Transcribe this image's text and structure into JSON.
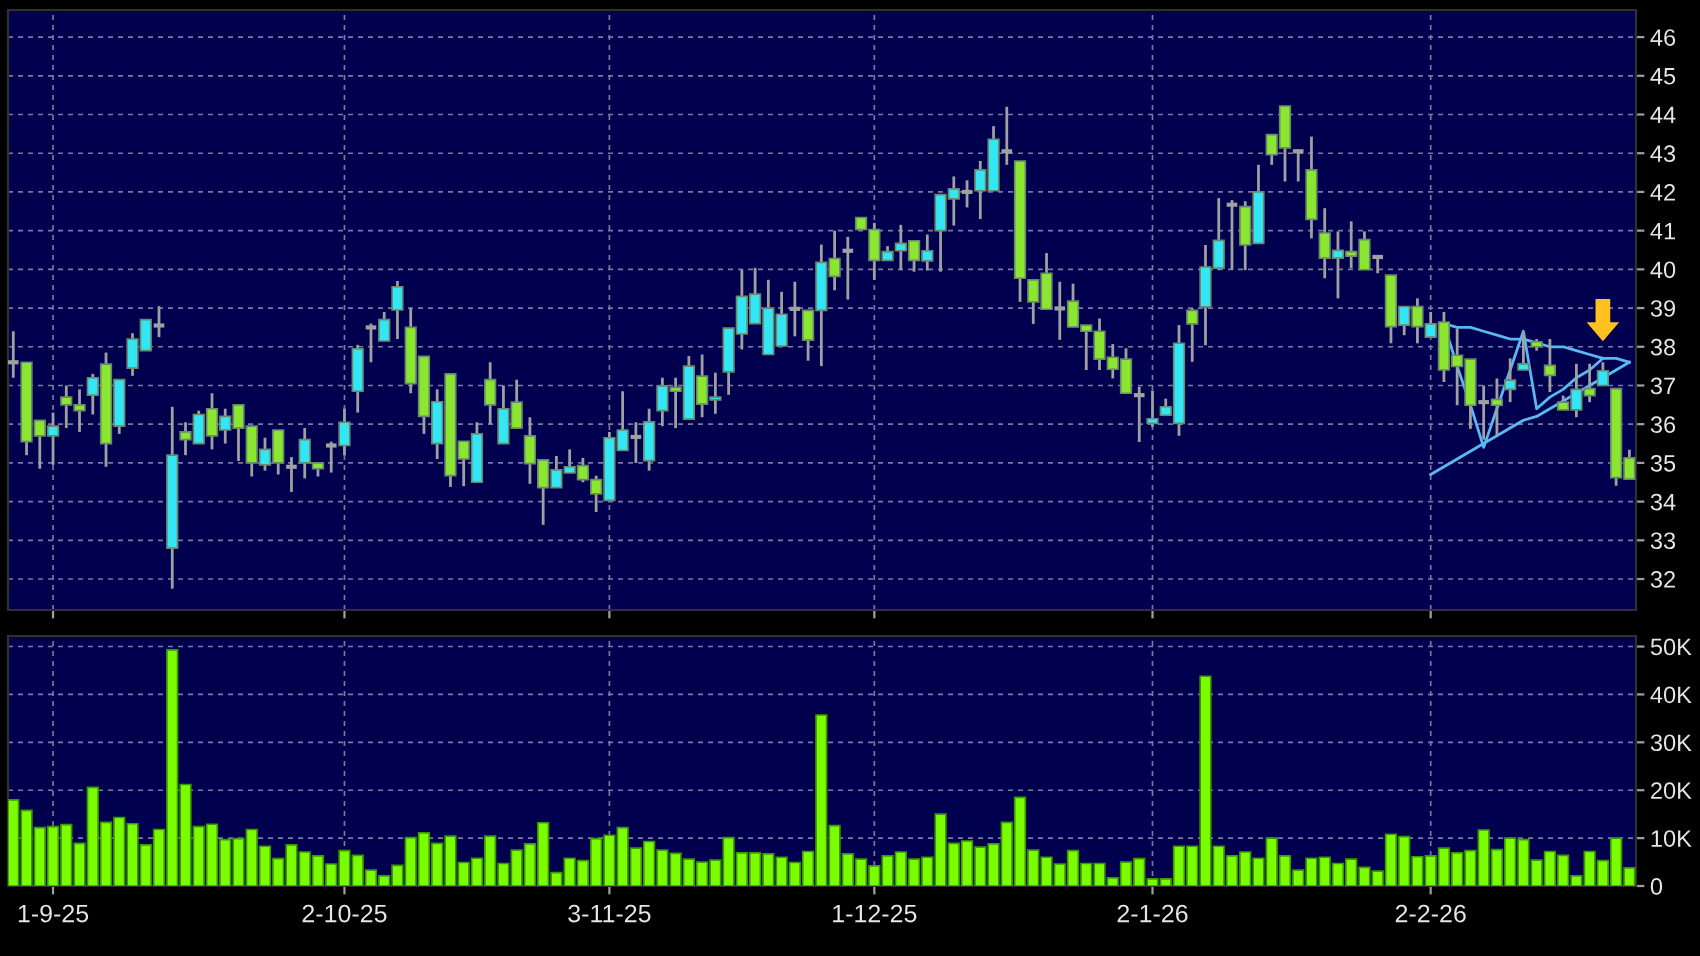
{
  "chart_data": [
    {
      "type": "candlestick",
      "tick_labels": "y",
      "grid": true,
      "categories": [
        null,
        null,
        null,
        null,
        null,
        null,
        null,
        null,
        null,
        null,
        null,
        null,
        null,
        null,
        null,
        null,
        null,
        null,
        null,
        null,
        null,
        null,
        null,
        null,
        null,
        null,
        null,
        null,
        null,
        null,
        null,
        null,
        null,
        null,
        null,
        null,
        null,
        null,
        null,
        null,
        null,
        null,
        null,
        null,
        null,
        null,
        null,
        null,
        null,
        null,
        null,
        null,
        null,
        null,
        null,
        null,
        null,
        null,
        null,
        null,
        null,
        null,
        null,
        null,
        null,
        null,
        null,
        null,
        null,
        null,
        null,
        null,
        null,
        null,
        null,
        null,
        null,
        null,
        null,
        null,
        null,
        null,
        null,
        null,
        null,
        null,
        null,
        null,
        null,
        null,
        null,
        null,
        null,
        null,
        null,
        null,
        null,
        null,
        null,
        null,
        null,
        null,
        null,
        null,
        null,
        null,
        null,
        null,
        null,
        null,
        null,
        null,
        null,
        null,
        null,
        null,
        null,
        null,
        null,
        null,
        null,
        null,
        null
      ],
      "ohlc": [
        [
          37.6,
          38.4,
          37.2,
          37.6
        ],
        [
          37.6,
          37.6,
          35.2,
          35.55
        ],
        [
          36.1,
          36.1,
          34.85,
          35.7
        ],
        [
          35.7,
          36.3,
          34.95,
          35.95
        ],
        [
          36.7,
          37.0,
          35.9,
          36.5
        ],
        [
          36.5,
          36.9,
          35.8,
          36.35
        ],
        [
          36.75,
          37.3,
          36.25,
          37.2
        ],
        [
          37.55,
          37.85,
          34.9,
          35.5
        ],
        [
          35.95,
          37.15,
          35.75,
          37.15
        ],
        [
          37.45,
          38.35,
          37.25,
          38.2
        ],
        [
          37.9,
          38.7,
          37.9,
          38.7
        ],
        [
          38.55,
          39.05,
          38.25,
          38.55
        ],
        [
          32.8,
          36.45,
          31.75,
          35.2
        ],
        [
          35.8,
          36.05,
          35.2,
          35.6
        ],
        [
          35.5,
          36.35,
          35.5,
          36.25
        ],
        [
          36.4,
          36.8,
          35.35,
          35.7
        ],
        [
          35.85,
          36.4,
          35.5,
          36.2
        ],
        [
          36.5,
          36.5,
          35.05,
          35.9
        ],
        [
          35.95,
          35.95,
          34.65,
          35.0
        ],
        [
          34.95,
          35.65,
          34.8,
          35.35
        ],
        [
          35.85,
          35.85,
          34.7,
          35.0
        ],
        [
          34.9,
          35.15,
          34.25,
          34.9
        ],
        [
          35.0,
          35.9,
          34.6,
          35.6
        ],
        [
          35.0,
          35.0,
          34.65,
          34.85
        ],
        [
          35.45,
          35.55,
          34.75,
          35.45
        ],
        [
          35.45,
          36.4,
          35.2,
          36.05
        ],
        [
          36.85,
          38.05,
          36.3,
          37.95
        ],
        [
          38.5,
          38.6,
          37.6,
          38.5
        ],
        [
          38.15,
          38.9,
          38.15,
          38.7
        ],
        [
          38.95,
          39.7,
          38.2,
          39.55
        ],
        [
          38.5,
          39.0,
          36.8,
          37.05
        ],
        [
          37.75,
          37.75,
          35.75,
          36.2
        ],
        [
          35.5,
          36.9,
          35.1,
          36.58
        ],
        [
          37.3,
          37.3,
          34.38,
          34.67
        ],
        [
          35.56,
          35.56,
          34.4,
          35.1
        ],
        [
          34.5,
          36.05,
          34.5,
          35.75
        ],
        [
          37.15,
          37.6,
          36.0,
          36.5
        ],
        [
          35.5,
          37.0,
          35.5,
          36.4
        ],
        [
          36.57,
          37.15,
          35.9,
          35.9
        ],
        [
          35.7,
          36.18,
          34.46,
          34.98
        ],
        [
          35.08,
          35.08,
          33.4,
          34.36
        ],
        [
          34.36,
          35.18,
          34.36,
          34.82
        ],
        [
          34.74,
          35.35,
          34.74,
          34.9
        ],
        [
          34.93,
          35.13,
          34.5,
          34.57
        ],
        [
          34.57,
          34.67,
          33.73,
          34.2
        ],
        [
          34.03,
          35.8,
          34.03,
          35.65
        ],
        [
          35.32,
          36.85,
          35.32,
          35.85
        ],
        [
          35.67,
          36.05,
          35.0,
          35.67
        ],
        [
          35.06,
          36.4,
          34.8,
          36.06
        ],
        [
          36.35,
          37.2,
          35.95,
          36.99
        ],
        [
          36.95,
          37.2,
          35.9,
          36.85
        ],
        [
          36.13,
          37.76,
          36.13,
          37.5
        ],
        [
          37.24,
          37.8,
          36.18,
          36.52
        ],
        [
          36.63,
          37.33,
          36.27,
          36.7
        ],
        [
          37.35,
          38.48,
          36.76,
          38.48
        ],
        [
          38.33,
          39.99,
          37.93,
          39.3
        ],
        [
          38.6,
          40.04,
          38.6,
          39.36
        ],
        [
          37.8,
          39.73,
          37.8,
          39.0
        ],
        [
          38.02,
          39.42,
          38.02,
          38.84
        ],
        [
          38.98,
          39.68,
          38.27,
          38.98
        ],
        [
          38.94,
          38.94,
          37.64,
          38.17
        ],
        [
          38.94,
          40.64,
          37.5,
          40.18
        ],
        [
          40.28,
          41.0,
          39.46,
          39.82
        ],
        [
          40.48,
          40.84,
          39.22,
          40.48
        ],
        [
          41.34,
          41.34,
          41.0,
          41.03
        ],
        [
          41.03,
          41.2,
          39.73,
          40.23
        ],
        [
          40.23,
          40.6,
          40.23,
          40.46
        ],
        [
          40.48,
          41.15,
          39.98,
          40.67
        ],
        [
          40.74,
          40.74,
          39.94,
          40.23
        ],
        [
          40.22,
          40.9,
          39.97,
          40.48
        ],
        [
          41.0,
          41.93,
          39.94,
          41.93
        ],
        [
          41.82,
          42.4,
          41.13,
          42.08
        ],
        [
          42.0,
          42.3,
          41.6,
          42.0
        ],
        [
          42.03,
          42.8,
          41.3,
          42.57
        ],
        [
          42.03,
          43.7,
          42.03,
          43.36
        ],
        [
          43.05,
          44.2,
          42.7,
          43.05
        ],
        [
          42.8,
          42.8,
          39.16,
          39.77
        ],
        [
          39.73,
          39.73,
          38.59,
          39.16
        ],
        [
          39.9,
          40.42,
          38.97,
          38.97
        ],
        [
          38.99,
          39.68,
          38.18,
          38.99
        ],
        [
          39.18,
          39.63,
          38.51,
          38.51
        ],
        [
          38.56,
          38.56,
          37.4,
          38.4
        ],
        [
          38.4,
          38.73,
          37.4,
          37.68
        ],
        [
          37.73,
          38.07,
          37.18,
          37.42
        ],
        [
          37.68,
          37.96,
          36.8,
          36.8
        ],
        [
          36.75,
          36.97,
          35.54,
          36.75
        ],
        [
          36.02,
          36.87,
          35.93,
          36.14
        ],
        [
          36.23,
          36.66,
          36.23,
          36.45
        ],
        [
          36.02,
          38.56,
          35.7,
          38.09
        ],
        [
          38.94,
          38.99,
          37.61,
          38.59
        ],
        [
          39.03,
          40.63,
          38.04,
          40.06
        ],
        [
          40.03,
          41.84,
          39.98,
          40.75
        ],
        [
          41.67,
          41.79,
          39.99,
          41.67
        ],
        [
          41.62,
          41.76,
          39.98,
          40.63
        ],
        [
          40.67,
          42.7,
          40.67,
          42.0
        ],
        [
          43.48,
          43.48,
          42.7,
          42.96
        ],
        [
          44.22,
          44.22,
          42.27,
          43.14
        ],
        [
          43.05,
          43.1,
          42.27,
          43.05
        ],
        [
          42.57,
          43.43,
          40.8,
          41.29
        ],
        [
          40.94,
          41.58,
          39.77,
          40.29
        ],
        [
          40.29,
          40.98,
          39.25,
          40.49
        ],
        [
          40.46,
          41.24,
          40.03,
          40.34
        ],
        [
          40.77,
          40.98,
          39.99,
          39.99
        ],
        [
          40.32,
          40.37,
          39.9,
          40.32
        ],
        [
          39.85,
          39.85,
          38.09,
          38.52
        ],
        [
          38.56,
          39.04,
          38.3,
          39.04
        ],
        [
          39.04,
          39.25,
          38.09,
          38.52
        ],
        [
          38.25,
          38.9,
          38.25,
          38.59
        ],
        [
          38.64,
          38.9,
          37.09,
          37.4
        ],
        [
          37.78,
          38.47,
          36.49,
          37.49
        ],
        [
          37.68,
          37.68,
          35.88,
          36.49
        ],
        [
          36.57,
          37.0,
          35.6,
          36.57
        ],
        [
          36.64,
          37.18,
          35.7,
          36.49
        ],
        [
          36.9,
          37.7,
          36.57,
          37.14
        ],
        [
          37.4,
          38.39,
          37.4,
          37.56
        ],
        [
          38.13,
          38.2,
          37.9,
          38.0
        ],
        [
          37.52,
          38.2,
          36.83,
          37.26
        ],
        [
          36.57,
          36.74,
          36.37,
          36.37
        ],
        [
          36.37,
          37.56,
          36.18,
          36.9
        ],
        [
          36.92,
          37.56,
          36.57,
          36.74
        ],
        [
          37.0,
          37.6,
          37.0,
          37.38
        ],
        [
          36.92,
          36.92,
          34.41,
          34.62
        ],
        [
          35.13,
          35.34,
          34.58,
          34.58
        ]
      ],
      "colors": [
        "#a0a0a0",
        "#8ae62e",
        "#8ae62e",
        "#33e6f5",
        "#8ae62e",
        "#8ae62e",
        "#33e6f5",
        "#8ae62e",
        "#33e6f5",
        "#33e6f5",
        "#33e6f5",
        "#a0a0a0",
        "#33e6f5",
        "#8ae62e",
        "#33e6f5",
        "#8ae62e",
        "#33e6f5",
        "#8ae62e",
        "#8ae62e",
        "#33e6f5",
        "#8ae62e",
        "#a0a0a0",
        "#33e6f5",
        "#8ae62e",
        "#a0a0a0",
        "#33e6f5",
        "#33e6f5",
        "#a0a0a0",
        "#33e6f5",
        "#33e6f5",
        "#8ae62e",
        "#8ae62e",
        "#33e6f5",
        "#8ae62e",
        "#8ae62e",
        "#33e6f5",
        "#8ae62e",
        "#33e6f5",
        "#8ae62e",
        "#8ae62e",
        "#8ae62e",
        "#33e6f5",
        "#33e6f5",
        "#8ae62e",
        "#8ae62e",
        "#33e6f5",
        "#33e6f5",
        "#a0a0a0",
        "#33e6f5",
        "#33e6f5",
        "#8ae62e",
        "#33e6f5",
        "#8ae62e",
        "#33e6f5",
        "#33e6f5",
        "#33e6f5",
        "#33e6f5",
        "#33e6f5",
        "#33e6f5",
        "#a0a0a0",
        "#8ae62e",
        "#33e6f5",
        "#8ae62e",
        "#a0a0a0",
        "#8ae62e",
        "#8ae62e",
        "#33e6f5",
        "#33e6f5",
        "#8ae62e",
        "#33e6f5",
        "#33e6f5",
        "#33e6f5",
        "#a0a0a0",
        "#33e6f5",
        "#33e6f5",
        "#a0a0a0",
        "#8ae62e",
        "#8ae62e",
        "#8ae62e",
        "#a0a0a0",
        "#8ae62e",
        "#8ae62e",
        "#8ae62e",
        "#8ae62e",
        "#8ae62e",
        "#a0a0a0",
        "#33e6f5",
        "#33e6f5",
        "#33e6f5",
        "#8ae62e",
        "#33e6f5",
        "#33e6f5",
        "#a0a0a0",
        "#8ae62e",
        "#33e6f5",
        "#8ae62e",
        "#8ae62e",
        "#a0a0a0",
        "#8ae62e",
        "#8ae62e",
        "#33e6f5",
        "#8ae62e",
        "#8ae62e",
        "#a0a0a0",
        "#8ae62e",
        "#33e6f5",
        "#8ae62e",
        "#33e6f5",
        "#8ae62e",
        "#8ae62e",
        "#8ae62e",
        "#a0a0a0",
        "#8ae62e",
        "#33e6f5",
        "#33e6f5",
        "#8ae62e",
        "#8ae62e",
        "#8ae62e",
        "#33e6f5",
        "#8ae62e",
        "#33e6f5",
        "#8ae62e",
        "#8ae62e"
      ],
      "series": [
        {
          "type": "line",
          "color": "#5ab8f0",
          "values": [
            null,
            null,
            null,
            null,
            null,
            null,
            null,
            null,
            null,
            null,
            null,
            null,
            null,
            null,
            null,
            null,
            null,
            null,
            null,
            null,
            null,
            null,
            null,
            null,
            null,
            null,
            null,
            null,
            null,
            null,
            null,
            null,
            null,
            null,
            null,
            null,
            null,
            null,
            null,
            null,
            null,
            null,
            null,
            null,
            null,
            null,
            null,
            null,
            null,
            null,
            null,
            null,
            null,
            null,
            null,
            null,
            null,
            null,
            null,
            null,
            null,
            null,
            null,
            null,
            null,
            null,
            null,
            null,
            null,
            null,
            null,
            null,
            null,
            null,
            null,
            null,
            null,
            null,
            null,
            null,
            null,
            null,
            null,
            null,
            null,
            null,
            null,
            null,
            null,
            null,
            null,
            null,
            null,
            null,
            null,
            null,
            null,
            null,
            null,
            null,
            null,
            null,
            null,
            null,
            null,
            null,
            null,
            null,
            38.6,
            38.5,
            38.5,
            38.4,
            38.3,
            38.2,
            38.2,
            38.1,
            38.0,
            38.0,
            37.9,
            37.8,
            37.7,
            37.7,
            37.6
          ]
        },
        {
          "type": "line",
          "color": "#5ab8f0",
          "values": [
            null,
            null,
            null,
            null,
            null,
            null,
            null,
            null,
            null,
            null,
            null,
            null,
            null,
            null,
            null,
            null,
            null,
            null,
            null,
            null,
            null,
            null,
            null,
            null,
            null,
            null,
            null,
            null,
            null,
            null,
            null,
            null,
            null,
            null,
            null,
            null,
            null,
            null,
            null,
            null,
            null,
            null,
            null,
            null,
            null,
            null,
            null,
            null,
            null,
            null,
            null,
            null,
            null,
            null,
            null,
            null,
            null,
            null,
            null,
            null,
            null,
            null,
            null,
            null,
            null,
            null,
            null,
            null,
            null,
            null,
            null,
            null,
            null,
            null,
            null,
            null,
            null,
            null,
            null,
            null,
            null,
            null,
            null,
            null,
            null,
            null,
            null,
            null,
            null,
            null,
            null,
            null,
            null,
            null,
            null,
            null,
            null,
            null,
            null,
            null,
            null,
            null,
            null,
            null,
            null,
            null,
            null,
            34.7,
            34.9,
            35.1,
            35.3,
            35.5,
            35.7,
            35.9,
            36.1,
            36.2,
            36.4,
            36.6,
            36.8,
            37.0,
            37.2,
            37.4,
            37.6
          ]
        },
        {
          "type": "line",
          "color": "#5ab8f0",
          "values": [
            null,
            null,
            null,
            null,
            null,
            null,
            null,
            null,
            null,
            null,
            null,
            null,
            null,
            null,
            null,
            null,
            null,
            null,
            null,
            null,
            null,
            null,
            null,
            null,
            null,
            null,
            null,
            null,
            null,
            null,
            null,
            null,
            null,
            null,
            null,
            null,
            null,
            null,
            null,
            null,
            null,
            null,
            null,
            null,
            null,
            null,
            null,
            null,
            null,
            null,
            null,
            null,
            null,
            null,
            null,
            null,
            null,
            null,
            null,
            null,
            null,
            null,
            null,
            null,
            null,
            null,
            null,
            null,
            null,
            null,
            null,
            null,
            null,
            null,
            null,
            null,
            null,
            null,
            null,
            null,
            null,
            null,
            null,
            null,
            null,
            null,
            null,
            null,
            null,
            null,
            null,
            null,
            null,
            null,
            null,
            null,
            null,
            null,
            null,
            null,
            null,
            null,
            null,
            null,
            null,
            null,
            null,
            null,
            38.6,
            37.5,
            36.5,
            35.4,
            36.4,
            37.4,
            38.4,
            36.4,
            36.7,
            36.9,
            37.2,
            37.4,
            37.7,
            null,
            null
          ]
        }
      ],
      "ylim": [
        31.2,
        46.7
      ],
      "yticks": [
        32,
        33,
        34,
        35,
        36,
        37,
        38,
        39,
        40,
        41,
        42,
        43,
        44,
        45,
        46
      ]
    },
    {
      "type": "bar",
      "grid": true,
      "color": "#7cfc00",
      "categories": [
        null,
        null,
        null,
        "1-9-25",
        null,
        null,
        null,
        null,
        null,
        null,
        null,
        null,
        null,
        null,
        null,
        null,
        null,
        null,
        null,
        null,
        null,
        null,
        null,
        null,
        null,
        "2-10-25",
        null,
        null,
        null,
        null,
        null,
        null,
        null,
        null,
        null,
        null,
        null,
        null,
        null,
        null,
        null,
        null,
        null,
        null,
        null,
        "3-11-25",
        null,
        null,
        null,
        null,
        null,
        null,
        null,
        null,
        null,
        null,
        null,
        null,
        null,
        null,
        null,
        null,
        null,
        null,
        null,
        "1-12-25",
        null,
        null,
        null,
        null,
        null,
        null,
        null,
        null,
        null,
        null,
        null,
        null,
        null,
        null,
        null,
        null,
        null,
        null,
        null,
        null,
        "2-1-26",
        null,
        null,
        null,
        null,
        null,
        null,
        null,
        null,
        null,
        null,
        null,
        null,
        null,
        null,
        null,
        null,
        null,
        null,
        null,
        null,
        "2-2-26",
        null,
        null,
        null,
        null,
        null,
        null,
        null,
        null,
        null,
        null,
        null,
        null,
        null,
        null,
        null
      ],
      "values": [
        18000,
        15800,
        12200,
        12400,
        12800,
        8900,
        20600,
        13300,
        14300,
        13000,
        8600,
        11800,
        49300,
        21200,
        12400,
        12900,
        9700,
        9900,
        11800,
        8300,
        5700,
        8600,
        7100,
        6300,
        4600,
        7400,
        6400,
        3300,
        2100,
        4300,
        10100,
        11100,
        8900,
        10400,
        4900,
        5800,
        10400,
        4700,
        7500,
        8800,
        13200,
        2800,
        5800,
        5300,
        9900,
        10600,
        12200,
        7900,
        9300,
        7500,
        6800,
        5600,
        5000,
        5400,
        10100,
        6900,
        6900,
        6700,
        6000,
        4900,
        7200,
        35700,
        12600,
        6700,
        5600,
        4200,
        6300,
        7100,
        5600,
        6000,
        15000,
        8900,
        9400,
        8100,
        8800,
        13300,
        18500,
        7500,
        6000,
        4600,
        7400,
        4700,
        4700,
        1700,
        5000,
        5700,
        1500,
        1500,
        8300,
        8300,
        43800,
        8300,
        6300,
        7100,
        5800,
        10000,
        6300,
        3300,
        5800,
        6000,
        4700,
        5600,
        3900,
        3100,
        10800,
        10300,
        6100,
        6300,
        7900,
        6900,
        7400,
        11700,
        7600,
        10000,
        9700,
        5400,
        7200,
        6400,
        2100,
        7200,
        5300,
        10000,
        3800
      ],
      "ylim": [
        0,
        52200
      ],
      "yticks": [
        {
          "value": 0,
          "label": "0"
        },
        {
          "value": 10000,
          "label": "10K"
        },
        {
          "value": 20000,
          "label": "20K"
        },
        {
          "value": 30000,
          "label": "30K"
        },
        {
          "value": 40000,
          "label": "40K"
        },
        {
          "value": 50000,
          "label": "50K"
        }
      ]
    }
  ]
}
